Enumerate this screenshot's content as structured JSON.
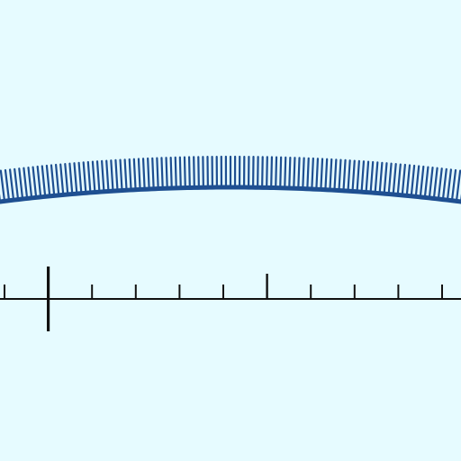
{
  "colors": {
    "background": "#e6fbff",
    "arc": "#1e4f91",
    "ruler": "#111111"
  },
  "scene": {
    "arc": {
      "spike_count": 103
    },
    "ruler": {
      "tick_count": 11,
      "major_tick_index": 1,
      "tall_tick_indices": [
        6
      ]
    }
  }
}
